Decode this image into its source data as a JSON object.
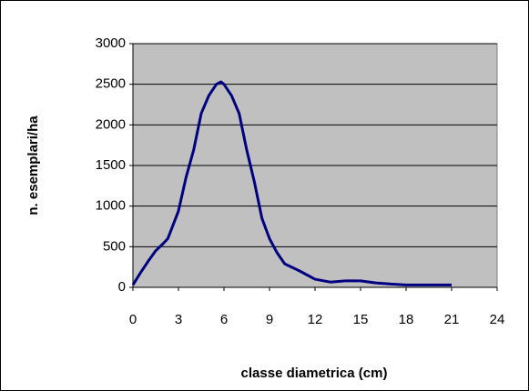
{
  "chart_data": {
    "type": "line",
    "xlabel": "classe diametrica (cm)",
    "ylabel": "n. esemplari/ha",
    "x": [
      0,
      0.5,
      1,
      1.5,
      2,
      2.3,
      3,
      3.5,
      4,
      4.5,
      5,
      5.5,
      5.8,
      6,
      6.5,
      7,
      7.5,
      8,
      8.5,
      9,
      9.5,
      10,
      11,
      12,
      13,
      14,
      15,
      16,
      17,
      18,
      19,
      20,
      21
    ],
    "series": [
      {
        "name": "n. esemplari/ha",
        "color": "#000080",
        "values": [
          30,
          180,
          320,
          450,
          540,
          600,
          940,
          1354,
          1690,
          2140,
          2360,
          2500,
          2530,
          2500,
          2360,
          2140,
          1690,
          1300,
          850,
          600,
          425,
          290,
          200,
          100,
          65,
          80,
          80,
          55,
          40,
          30,
          30,
          30,
          30
        ]
      }
    ],
    "xlim": [
      0,
      24
    ],
    "xticks": [
      0,
      3,
      6,
      9,
      12,
      15,
      18,
      21,
      24
    ],
    "ylim": [
      0,
      3000
    ],
    "yticks": [
      0,
      500,
      1000,
      1500,
      2000,
      2500,
      3000
    ],
    "grid": true,
    "background": "#c0c0c0"
  }
}
